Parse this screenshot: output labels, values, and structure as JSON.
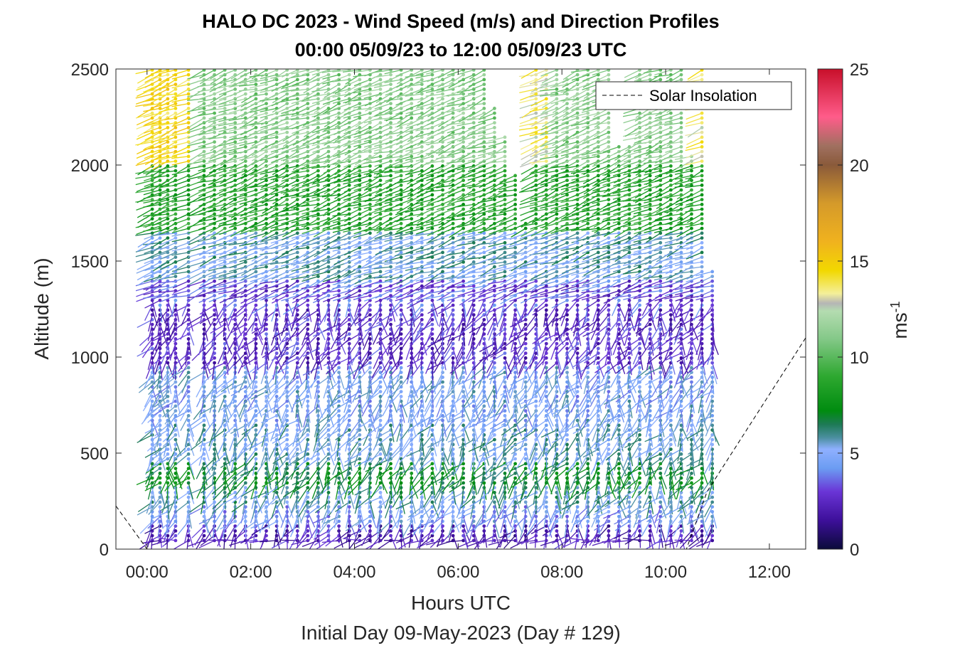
{
  "chart_data": {
    "type": "wind-barb-profile",
    "title": "HALO DC 2023 - Wind Speed (m/s) and Direction Profiles",
    "subtitle": "00:00 05/09/23 to 12:00 05/09/23  UTC",
    "xlabel": "Hours UTC",
    "xlabel2": "Initial Day 09-May-2023 (Day # 129)",
    "ylabel": "Altitude (m)",
    "xlim": [
      -0.6,
      12.7
    ],
    "ylim": [
      0,
      2500
    ],
    "x_ticks": [
      0,
      2,
      4,
      6,
      8,
      10,
      12
    ],
    "x_tick_labels": [
      "00:00",
      "02:00",
      "04:00",
      "06:00",
      "08:00",
      "10:00",
      "12:00"
    ],
    "y_ticks": [
      0,
      500,
      1000,
      1500,
      2000,
      2500
    ],
    "y_tick_labels": [
      "0",
      "500",
      "1000",
      "1500",
      "2000",
      "2500"
    ],
    "colorbar": {
      "label": "ms",
      "label_exponent": "-1",
      "min": 0,
      "max": 25,
      "ticks": [
        0,
        5,
        10,
        15,
        20,
        25
      ],
      "tick_labels": [
        "0",
        "5",
        "10",
        "15",
        "20",
        "25"
      ],
      "stops": [
        {
          "v": 0,
          "c": "#0b0b3a"
        },
        {
          "v": 1.5,
          "c": "#3d0f9a"
        },
        {
          "v": 3,
          "c": "#6a35d6"
        },
        {
          "v": 4.2,
          "c": "#6b9cf2"
        },
        {
          "v": 5.2,
          "c": "#8fb0ff"
        },
        {
          "v": 5.8,
          "c": "#4b8fa0"
        },
        {
          "v": 6.5,
          "c": "#1d7a55"
        },
        {
          "v": 7.2,
          "c": "#008c10"
        },
        {
          "v": 9,
          "c": "#2ea830"
        },
        {
          "v": 11,
          "c": "#86c98a"
        },
        {
          "v": 12.4,
          "c": "#b4dcb0"
        },
        {
          "v": 12.8,
          "c": "#b5b5b5"
        },
        {
          "v": 13.3,
          "c": "#f4ef9a"
        },
        {
          "v": 14.5,
          "c": "#f2d800"
        },
        {
          "v": 16,
          "c": "#f0b21e"
        },
        {
          "v": 18,
          "c": "#d59a2a"
        },
        {
          "v": 20,
          "c": "#8a5a3a"
        },
        {
          "v": 21,
          "c": "#a07060"
        },
        {
          "v": 22.5,
          "c": "#ff5c8a"
        },
        {
          "v": 25,
          "c": "#c80f2a"
        }
      ]
    },
    "legend": {
      "label": "Solar Insolation",
      "position": "top-right"
    },
    "solar_insolation": {
      "x": [
        -0.6,
        0.0,
        0.2,
        10.4,
        10.8,
        12.7
      ],
      "y": [
        225,
        0,
        0,
        0,
        300,
        1100
      ]
    },
    "profile_times": [
      0.1,
      0.25,
      0.4,
      0.55,
      0.8,
      1.1,
      1.3,
      1.5,
      1.7,
      1.9,
      2.1,
      2.3,
      2.5,
      2.7,
      2.9,
      3.1,
      3.3,
      3.5,
      3.7,
      3.9,
      4.1,
      4.3,
      4.5,
      4.7,
      4.9,
      5.1,
      5.3,
      5.5,
      5.7,
      5.9,
      6.1,
      6.3,
      6.5,
      6.7,
      6.9,
      7.1,
      7.3,
      7.5,
      7.7,
      7.9,
      8.1,
      8.3,
      8.5,
      8.7,
      8.9,
      9.1,
      9.3,
      9.5,
      9.7,
      9.9,
      10.1,
      10.3,
      10.5,
      10.7,
      10.9
    ],
    "top_altitude_by_profile": [
      2500,
      2500,
      2500,
      2500,
      2500,
      2500,
      2500,
      2500,
      2500,
      2500,
      2500,
      2500,
      2500,
      2500,
      2500,
      2500,
      2500,
      2500,
      2500,
      2500,
      2500,
      2500,
      2500,
      2500,
      2500,
      2500,
      2500,
      2500,
      2500,
      2500,
      2500,
      2500,
      2500,
      2300,
      2150,
      1950,
      1700,
      2500,
      2500,
      2500,
      2450,
      2500,
      2500,
      2500,
      2500,
      2100,
      2100,
      2500,
      2500,
      2500,
      2500,
      2500,
      2050,
      2500,
      1450
    ],
    "altitude_step": 25,
    "min_altitude": 45,
    "speed_layers_by_altitude": [
      {
        "alt": [
          40,
          130
        ],
        "speed": 2.2
      },
      {
        "alt": [
          130,
          230
        ],
        "speed": 4.5
      },
      {
        "alt": [
          230,
          330
        ],
        "speed": 5.6
      },
      {
        "alt": [
          330,
          450
        ],
        "speed": 7.0
      },
      {
        "alt": [
          450,
          650
        ],
        "speed": 5.4
      },
      {
        "alt": [
          650,
          950
        ],
        "speed": 4.8
      },
      {
        "alt": [
          950,
          1250
        ],
        "speed": 2.6
      },
      {
        "alt": [
          1250,
          1420
        ],
        "speed": 3.2
      },
      {
        "alt": [
          1420,
          1650
        ],
        "speed": 5.5
      },
      {
        "alt": [
          1650,
          2000
        ],
        "speed": 8.5
      },
      {
        "alt": [
          2000,
          2500
        ],
        "speed": 11.0
      }
    ],
    "direction_note": "westerly-to-northwesterly shear; low-level barbs slant, upper levels near-horizontal",
    "early_upper_speed": 14.5,
    "late_upper_speed": 13.5
  }
}
